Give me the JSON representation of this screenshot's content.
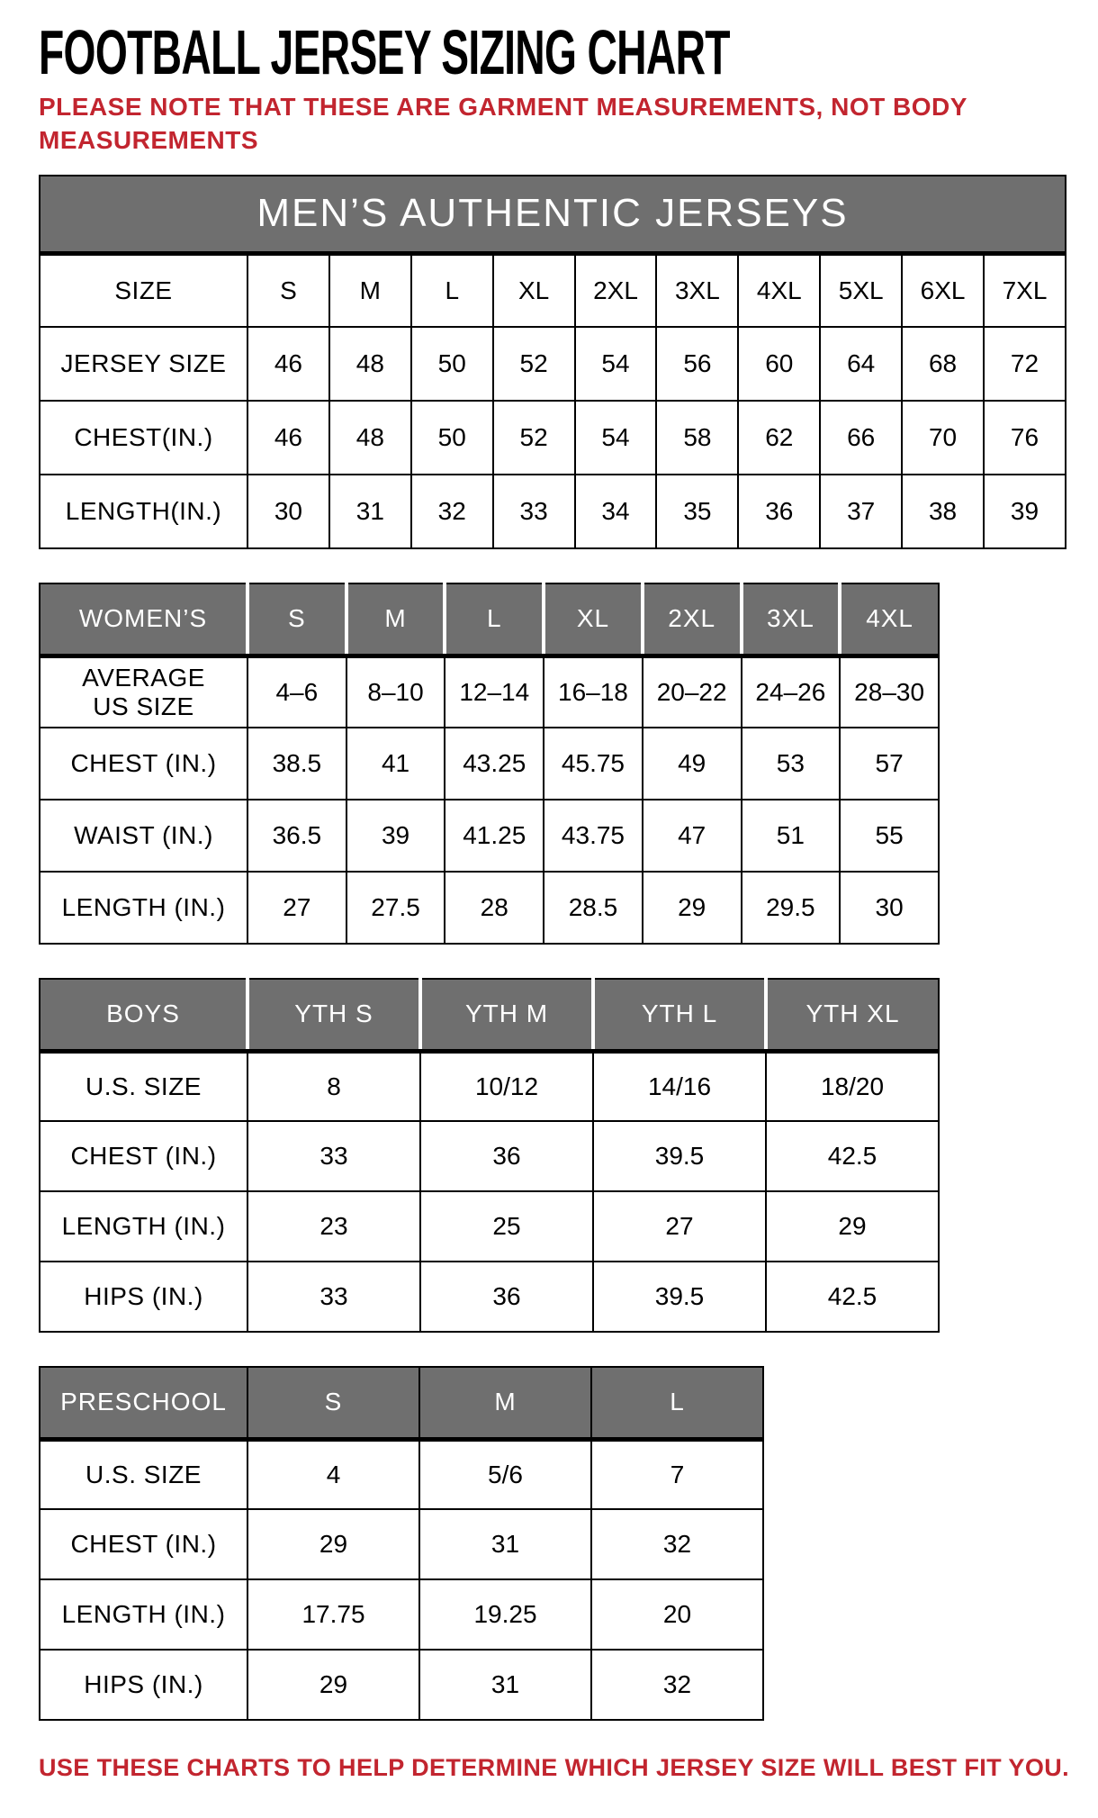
{
  "page": {
    "title": "FOOTBALL JERSEY SIZING CHART",
    "note": "PLEASE NOTE THAT THESE ARE GARMENT MEASUREMENTS, NOT BODY\nMEASUREMENTS",
    "footer": "USE THESE CHARTS TO HELP DETERMINE WHICH JERSEY SIZE WILL BEST FIT YOU.",
    "colors": {
      "accent_red": "#C2252F",
      "header_gray": "#6F6F6F",
      "header_text": "#FFFFFF",
      "body_text": "#000000"
    }
  },
  "tables": [
    {
      "name": "mens",
      "banner": "MEN’S AUTHENTIC JERSEYS",
      "header": null,
      "rows": [
        [
          "SIZE",
          "S",
          "M",
          "L",
          "XL",
          "2XL",
          "3XL",
          "4XL",
          "5XL",
          "6XL",
          "7XL"
        ],
        [
          "JERSEY SIZE",
          "46",
          "48",
          "50",
          "52",
          "54",
          "56",
          "60",
          "64",
          "68",
          "72"
        ],
        [
          "CHEST(IN.)",
          "46",
          "48",
          "50",
          "52",
          "54",
          "58",
          "62",
          "66",
          "70",
          "76"
        ],
        [
          "LENGTH(IN.)",
          "30",
          "31",
          "32",
          "33",
          "34",
          "35",
          "36",
          "37",
          "38",
          "39"
        ]
      ]
    },
    {
      "name": "womens",
      "banner": null,
      "header": [
        "WOMEN’S",
        "S",
        "M",
        "L",
        "XL",
        "2XL",
        "3XL",
        "4XL"
      ],
      "rows": [
        [
          "AVERAGE\nUS SIZE",
          "4–6",
          "8–10",
          "12–14",
          "16–18",
          "20–22",
          "24–26",
          "28–30"
        ],
        [
          "CHEST (IN.)",
          "38.5",
          "41",
          "43.25",
          "45.75",
          "49",
          "53",
          "57"
        ],
        [
          "WAIST (IN.)",
          "36.5",
          "39",
          "41.25",
          "43.75",
          "47",
          "51",
          "55"
        ],
        [
          "LENGTH (IN.)",
          "27",
          "27.5",
          "28",
          "28.5",
          "29",
          "29.5",
          "30"
        ]
      ]
    },
    {
      "name": "boys",
      "banner": null,
      "header": [
        "BOYS",
        "YTH S",
        "YTH M",
        "YTH L",
        "YTH XL"
      ],
      "rows": [
        [
          "U.S. SIZE",
          "8",
          "10/12",
          "14/16",
          "18/20"
        ],
        [
          "CHEST (IN.)",
          "33",
          "36",
          "39.5",
          "42.5"
        ],
        [
          "LENGTH (IN.)",
          "23",
          "25",
          "27",
          "29"
        ],
        [
          "HIPS (IN.)",
          "33",
          "36",
          "39.5",
          "42.5"
        ]
      ]
    },
    {
      "name": "preschool",
      "banner": null,
      "header": [
        "PRESCHOOL",
        "S",
        "M",
        "L"
      ],
      "rows": [
        [
          "U.S. SIZE",
          "4",
          "5/6",
          "7"
        ],
        [
          "CHEST (IN.)",
          "29",
          "31",
          "32"
        ],
        [
          "LENGTH (IN.)",
          "17.75",
          "19.25",
          "20"
        ],
        [
          "HIPS (IN.)",
          "29",
          "31",
          "32"
        ]
      ]
    }
  ]
}
